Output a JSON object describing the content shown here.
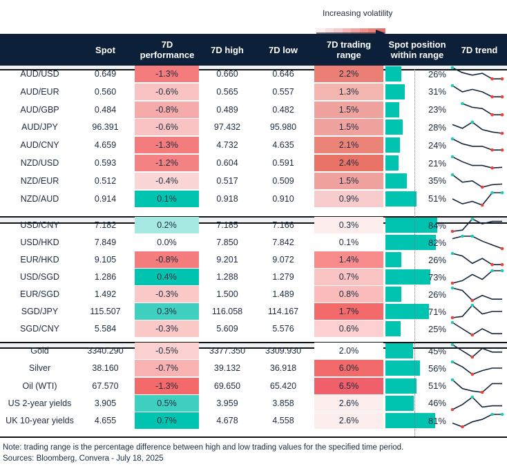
{
  "legend": {
    "label": "Increasing volatility",
    "colors": [
      "#fdeeee",
      "#fbdcdc",
      "#f9cccc",
      "#f6b7b4",
      "#f3a5a0",
      "#ef9189",
      "#ec7f76",
      "#e86f66"
    ]
  },
  "header": {
    "name": "",
    "spot": "Spot",
    "performance": "7D performance",
    "high": "7D high",
    "low": "7D low",
    "range": "7D trading range",
    "position": "Spot position within range",
    "trend": "7D trend"
  },
  "colors": {
    "header_bg": "#0c2139",
    "bar": "#00c4b0",
    "trend_line": "#12243a",
    "max_marker": "#1fc9b5",
    "min_marker": "#e8413a"
  },
  "groups": [
    [
      {
        "name": "AUD/USD",
        "spot": "0.649",
        "perf": "-1.3%",
        "perf_color": "#f47c7c",
        "high": "0.660",
        "low": "0.646",
        "range": "2.2%",
        "range_color": "#eb7f76",
        "position": 26,
        "position_label": "26%",
        "trend": [
          10,
          6,
          4,
          5.5,
          1,
          1
        ]
      },
      {
        "name": "AUD/EUR",
        "spot": "0.560",
        "perf": "-0.6%",
        "perf_color": "#f9c3c3",
        "high": "0.565",
        "low": "0.557",
        "range": "1.3%",
        "range_color": "#f3b5b0",
        "position": 31,
        "position_label": "31%",
        "trend": [
          10,
          5,
          7,
          5,
          1,
          1
        ]
      },
      {
        "name": "AUD/GBP",
        "spot": "0.484",
        "perf": "-0.8%",
        "perf_color": "#f6abab",
        "high": "0.489",
        "low": "0.482",
        "range": "1.5%",
        "range_color": "#f0a39e",
        "position": 23,
        "position_label": "23%",
        "trend": [
          null,
          10,
          7,
          6,
          1,
          1
        ]
      },
      {
        "name": "AUD/JPY",
        "spot": "96.391",
        "perf": "-0.6%",
        "perf_color": "#f9c3c3",
        "high": "97.432",
        "low": "95.980",
        "range": "1.5%",
        "range_color": "#f0a39e",
        "position": 28,
        "position_label": "28%",
        "trend": [
          7,
          4,
          9,
          3,
          1,
          0
        ]
      },
      {
        "name": "AUD/CNY",
        "spot": "4.659",
        "perf": "-1.3%",
        "perf_color": "#f47c7c",
        "high": "4.732",
        "low": "4.635",
        "range": "2.1%",
        "range_color": "#ec8378",
        "position": 24,
        "position_label": "24%",
        "trend": [
          10,
          6,
          4,
          4,
          1,
          1
        ]
      },
      {
        "name": "NZD/USD",
        "spot": "0.593",
        "perf": "-1.2%",
        "perf_color": "#f48282",
        "high": "0.604",
        "low": "0.591",
        "range": "2.4%",
        "range_color": "#e87266",
        "position": 21,
        "position_label": "21%",
        "trend": [
          10,
          6,
          3,
          3,
          1,
          1.5
        ]
      },
      {
        "name": "NZD/EUR",
        "spot": "0.512",
        "perf": "-0.4%",
        "perf_color": "#fbd6d6",
        "high": "0.517",
        "low": "0.509",
        "range": "1.5%",
        "range_color": "#f0a39e",
        "position": 35,
        "position_label": "35%",
        "trend": [
          10,
          4,
          5,
          0,
          2,
          2.5
        ]
      },
      {
        "name": "NZD/AUD",
        "spot": "0.914",
        "perf": "0.1%",
        "perf_color": "#00c4b0",
        "high": "0.918",
        "low": "0.910",
        "range": "0.9%",
        "range_color": "#f8cccc",
        "position": 51,
        "position_label": "51%",
        "trend": [
          5,
          1,
          3,
          0,
          10,
          10
        ]
      }
    ],
    [
      {
        "name": "USD/CNY",
        "spot": "7.182",
        "perf": "0.2%",
        "perf_color": "#a5e9e2",
        "high": "7.185",
        "low": "7.166",
        "range": "0.3%",
        "range_color": "#fdeded",
        "position": 84,
        "position_label": "84%",
        "trend": [
          0,
          1,
          10,
          6,
          8,
          8
        ]
      },
      {
        "name": "USD/HKD",
        "spot": "7.849",
        "perf": "0.0%",
        "perf_color": "#ffffff",
        "high": "7.850",
        "low": "7.842",
        "range": "0.1%",
        "range_color": "#ffffff",
        "position": 82,
        "position_label": "82%",
        "trend": [
          8,
          10,
          10,
          6,
          3,
          0
        ]
      },
      {
        "name": "EUR/HKD",
        "spot": "9.105",
        "perf": "-0.8%",
        "perf_color": "#f47c7c",
        "high": "9.201",
        "low": "9.072",
        "range": "1.4%",
        "range_color": "#f88c8c",
        "position": 26,
        "position_label": "26%",
        "trend": [
          10,
          8,
          2,
          6,
          1,
          1
        ]
      },
      {
        "name": "USD/SGD",
        "spot": "1.286",
        "perf": "0.4%",
        "perf_color": "#00c4b0",
        "high": "1.288",
        "low": "1.279",
        "range": "0.7%",
        "range_color": "#fbc4c4",
        "position": 73,
        "position_label": "73%",
        "trend": [
          0,
          2,
          7,
          3,
          10,
          10
        ]
      },
      {
        "name": "EUR/SGD",
        "spot": "1.492",
        "perf": "-0.3%",
        "perf_color": "#fbc8c8",
        "high": "1.500",
        "low": "1.489",
        "range": "0.8%",
        "range_color": "#fbbcbc",
        "position": 26,
        "position_label": "26%",
        "trend": [
          10,
          8,
          0,
          4,
          1,
          1
        ]
      },
      {
        "name": "SGD/JPY",
        "spot": "115.507",
        "perf": "0.3%",
        "perf_color": "#3fd0c0",
        "high": "116.058",
        "low": "114.167",
        "range": "1.7%",
        "range_color": "#f46a6a",
        "position": 71,
        "position_label": "71%",
        "trend": [
          0,
          1,
          10,
          3,
          5,
          5
        ]
      },
      {
        "name": "SGD/CNY",
        "spot": "5.584",
        "perf": "-0.3%",
        "perf_color": "#fbc8c8",
        "high": "5.609",
        "low": "5.576",
        "range": "0.6%",
        "range_color": "#fcd0d0",
        "position": 25,
        "position_label": "25%",
        "trend": [
          10,
          5,
          0,
          5,
          1,
          1
        ]
      }
    ],
    [
      {
        "name": "Gold",
        "spot": "3340.290",
        "perf": "-0.5%",
        "perf_color": "#fbd0d0",
        "high": "3377.350",
        "low": "3309.930",
        "range": "2.0%",
        "range_color": "#ffffff",
        "position": 45,
        "position_label": "45%",
        "trend": [
          10,
          5,
          0,
          7,
          4,
          4
        ]
      },
      {
        "name": "Silver",
        "spot": "38.160",
        "perf": "-0.7%",
        "perf_color": "#f8b2b2",
        "high": "39.132",
        "low": "36.918",
        "range": "6.0%",
        "range_color": "#f26a6a",
        "position": 56,
        "position_label": "56%",
        "trend": [
          10,
          6,
          0,
          3,
          5,
          5
        ]
      },
      {
        "name": "Oil (WTI)",
        "spot": "67.570",
        "perf": "-1.3%",
        "perf_color": "#f46a6a",
        "high": "69.650",
        "low": "65.420",
        "range": "6.5%",
        "range_color": "#f0606a",
        "position": 51,
        "position_label": "51%",
        "trend": [
          10,
          3,
          1,
          0,
          7,
          7
        ]
      },
      {
        "name": "US 2-year yields",
        "spot": "3.905",
        "perf": "0.5%",
        "perf_color": "#3fd0c0",
        "high": "3.959",
        "low": "3.858",
        "range": "2.6%",
        "range_color": "#fdeeee",
        "position": 46,
        "position_label": "46%",
        "trend": [
          0,
          4,
          10,
          2,
          3,
          3
        ]
      },
      {
        "name": "UK 10-year yields",
        "spot": "4.655",
        "perf": "0.7%",
        "perf_color": "#00c4b0",
        "high": "4.678",
        "low": "4.558",
        "range": "2.6%",
        "range_color": "#fdeeee",
        "position": 81,
        "position_label": "81%",
        "trend": [
          3,
          0,
          4,
          6,
          10,
          10
        ]
      }
    ]
  ],
  "footer": {
    "note": "Note: trading range is the percentage difference between high and low trading values for the specified time period.",
    "sources": "Sources: Bloomberg, Convera - July 18, 2025"
  }
}
